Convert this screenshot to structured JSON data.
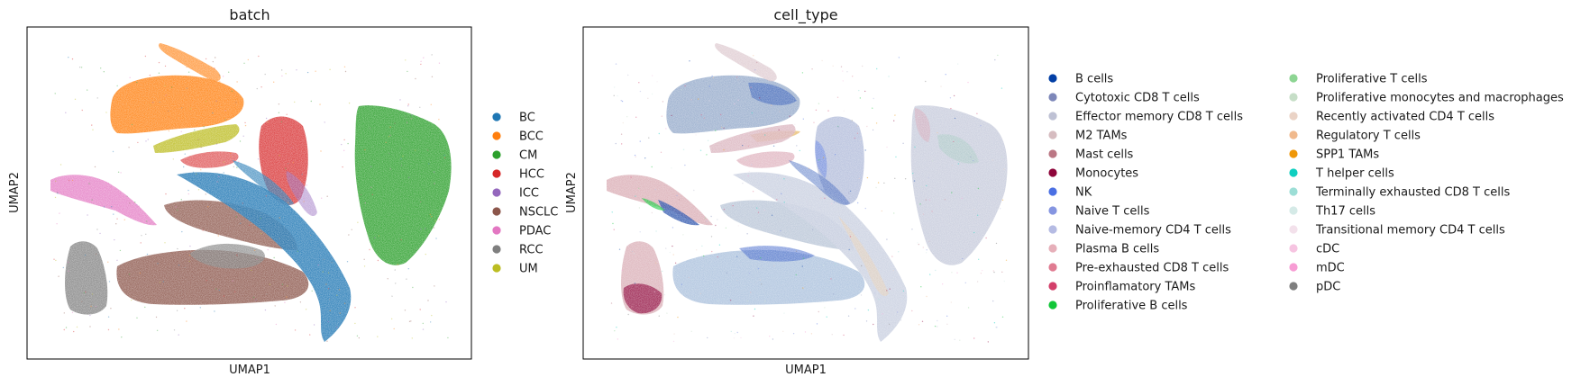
{
  "chart_data": [
    {
      "type": "scatter",
      "title": "batch",
      "xlabel": "UMAP1",
      "ylabel": "UMAP2",
      "grid": false,
      "legend_position": "right",
      "legend": [
        {
          "label": "BC",
          "color": "#1f77b4"
        },
        {
          "label": "BCC",
          "color": "#ff7f0e"
        },
        {
          "label": "CM",
          "color": "#2ca02c"
        },
        {
          "label": "HCC",
          "color": "#d62728"
        },
        {
          "label": "ICC",
          "color": "#9467bd"
        },
        {
          "label": "NSCLC",
          "color": "#8c564b"
        },
        {
          "label": "PDAC",
          "color": "#e377c2"
        },
        {
          "label": "RCC",
          "color": "#7f7f7f"
        },
        {
          "label": "UM",
          "color": "#bcbd22"
        }
      ]
    },
    {
      "type": "scatter",
      "title": "cell_type",
      "xlabel": "UMAP1",
      "ylabel": "UMAP2",
      "grid": false,
      "legend_position": "right",
      "legend": [
        {
          "label": "B cells",
          "color": "#023fa5"
        },
        {
          "label": "Cytotoxic CD8 T cells",
          "color": "#7d87b9"
        },
        {
          "label": "Effector memory CD8 T cells",
          "color": "#bec1d4"
        },
        {
          "label": "M2 TAMs",
          "color": "#d6bcc0"
        },
        {
          "label": "Mast cells",
          "color": "#bb7784"
        },
        {
          "label": "Monocytes",
          "color": "#8e063b"
        },
        {
          "label": "NK",
          "color": "#4a6fe3"
        },
        {
          "label": "Naive T cells",
          "color": "#8595e1"
        },
        {
          "label": "Naive-memory CD4 T cells",
          "color": "#b5bbe3"
        },
        {
          "label": "Plasma B cells",
          "color": "#e6afb9"
        },
        {
          "label": "Pre-exhausted CD8 T cells",
          "color": "#e07b91"
        },
        {
          "label": "Proinflamatory TAMs",
          "color": "#d33f6a"
        },
        {
          "label": "Proliferative B cells",
          "color": "#11c638"
        },
        {
          "label": "Proliferative T cells",
          "color": "#8dd593"
        },
        {
          "label": "Proliferative monocytes and macrophages",
          "color": "#c6dec7"
        },
        {
          "label": "Recently activated CD4 T cells",
          "color": "#ead3c6"
        },
        {
          "label": "Regulatory T cells",
          "color": "#f0b98d"
        },
        {
          "label": "SPP1 TAMs",
          "color": "#ef9708"
        },
        {
          "label": "T helper cells",
          "color": "#0fcfc0"
        },
        {
          "label": "Terminally exhausted CD8 T cells",
          "color": "#9cded6"
        },
        {
          "label": "Th17 cells",
          "color": "#d5eae7"
        },
        {
          "label": "Transitional memory CD4 T cells",
          "color": "#f3e1eb"
        },
        {
          "label": "cDC",
          "color": "#f6c4e1"
        },
        {
          "label": "mDC",
          "color": "#f79cd4"
        },
        {
          "label": "pDC",
          "color": "#7f7f7f"
        }
      ]
    }
  ]
}
